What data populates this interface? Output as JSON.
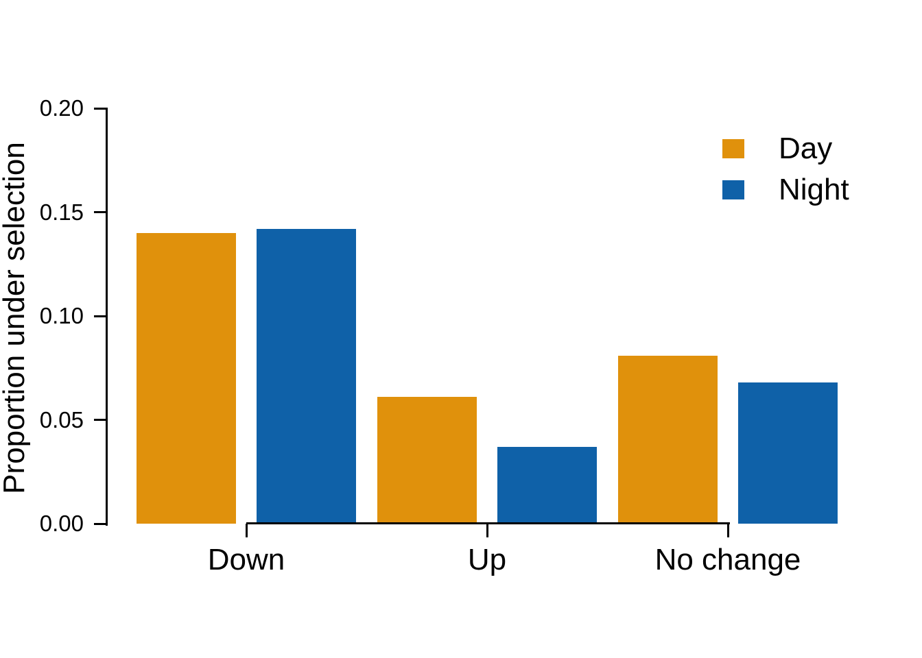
{
  "figure": {
    "background_color": "#ffffff",
    "axis_color": "#000000",
    "text_color": "#000000"
  },
  "chart_data": {
    "type": "bar",
    "title": "",
    "xlabel": "",
    "ylabel": "Proportion under selection",
    "categories": [
      "Down",
      "Up",
      "No change"
    ],
    "series": [
      {
        "name": "Day",
        "color": "#E0910C",
        "values": [
          0.14,
          0.061,
          0.081
        ]
      },
      {
        "name": "Night",
        "color": "#0F61A8",
        "values": [
          0.142,
          0.037,
          0.068
        ]
      }
    ],
    "ylim": [
      0,
      0.2
    ],
    "yticks": [
      "0.00",
      "0.05",
      "0.10",
      "0.15",
      "0.20"
    ],
    "grid": false,
    "legend_position": "top-right",
    "legend_labels": [
      "Day",
      "Night"
    ]
  }
}
